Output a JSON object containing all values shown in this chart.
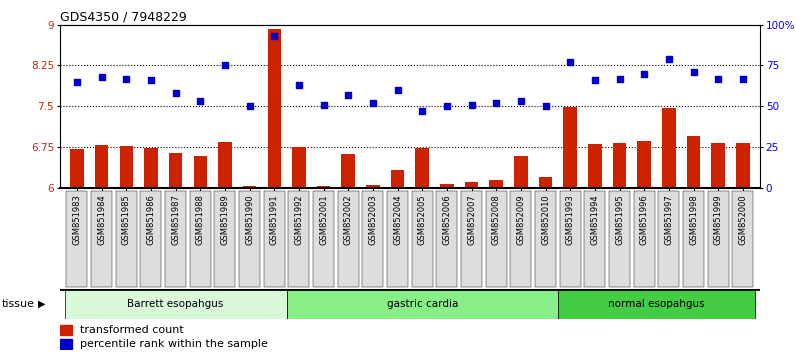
{
  "title": "GDS4350 / 7948229",
  "samples": [
    "GSM851983",
    "GSM851984",
    "GSM851985",
    "GSM851986",
    "GSM851987",
    "GSM851988",
    "GSM851989",
    "GSM851990",
    "GSM851991",
    "GSM851992",
    "GSM852001",
    "GSM852002",
    "GSM852003",
    "GSM852004",
    "GSM852005",
    "GSM852006",
    "GSM852007",
    "GSM852008",
    "GSM852009",
    "GSM852010",
    "GSM851993",
    "GSM851994",
    "GSM851995",
    "GSM851996",
    "GSM851997",
    "GSM851998",
    "GSM851999",
    "GSM852000"
  ],
  "bar_values": [
    6.72,
    6.78,
    6.76,
    6.73,
    6.63,
    6.58,
    6.84,
    6.03,
    8.92,
    6.75,
    6.03,
    6.62,
    6.05,
    6.32,
    6.73,
    6.07,
    6.1,
    6.14,
    6.58,
    6.2,
    7.48,
    6.8,
    6.83,
    6.86,
    7.47,
    6.95,
    6.82,
    6.82
  ],
  "dot_values": [
    65,
    68,
    67,
    66,
    58,
    53,
    75,
    50,
    93,
    63,
    51,
    57,
    52,
    60,
    47,
    50,
    51,
    52,
    53,
    50,
    77,
    66,
    67,
    70,
    79,
    71,
    67,
    67
  ],
  "groups": [
    {
      "label": "Barrett esopahgus",
      "start": 0,
      "end": 9,
      "color": "#d9f7d9"
    },
    {
      "label": "gastric cardia",
      "start": 9,
      "end": 20,
      "color": "#88ee88"
    },
    {
      "label": "normal esopahgus",
      "start": 20,
      "end": 28,
      "color": "#44cc44"
    }
  ],
  "bar_color": "#cc2200",
  "dot_color": "#0000cc",
  "ylim_left": [
    6,
    9
  ],
  "ylim_right": [
    0,
    100
  ],
  "yticks_left": [
    6,
    6.75,
    7.5,
    8.25,
    9
  ],
  "yticks_right": [
    0,
    25,
    50,
    75,
    100
  ],
  "yticklabels_right": [
    "0",
    "25",
    "50",
    "75",
    "100%"
  ],
  "hlines": [
    6.75,
    7.5,
    8.25
  ],
  "bar_width": 0.55,
  "tick_bg_color": "#dddddd"
}
